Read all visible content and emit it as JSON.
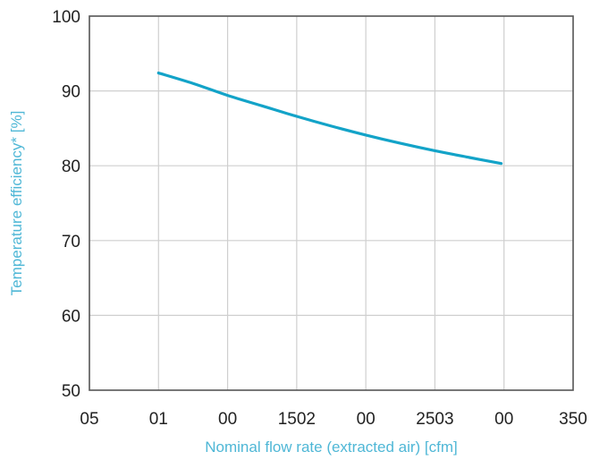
{
  "chart_data": {
    "type": "line",
    "title": "",
    "xlabel": "Nominal flow rate (extracted air) [cfm]",
    "ylabel": "Temperature efficiency* [%]",
    "x_tick_labels": [
      "05",
      "01",
      "00",
      "1502",
      "00",
      "2503",
      "00",
      "350"
    ],
    "y_ticks": [
      50,
      60,
      70,
      80,
      90,
      100
    ],
    "ylim": [
      50,
      100
    ],
    "x_tick_count": 8,
    "grid": true,
    "series": [
      {
        "color": "#13a3c8",
        "x_tick_index": [
          1,
          1.5,
          2,
          2.5,
          3,
          3.5,
          4,
          4.5,
          5,
          5.5,
          5.96
        ],
        "values": [
          92.4,
          91.0,
          89.4,
          88.0,
          86.6,
          85.3,
          84.1,
          83.0,
          82.0,
          81.1,
          80.3
        ]
      }
    ]
  },
  "colors": {
    "axis_title": "#4fb7d6",
    "series": "#13a3c8",
    "grid": "#cfcfcf",
    "frame": "#555555"
  }
}
